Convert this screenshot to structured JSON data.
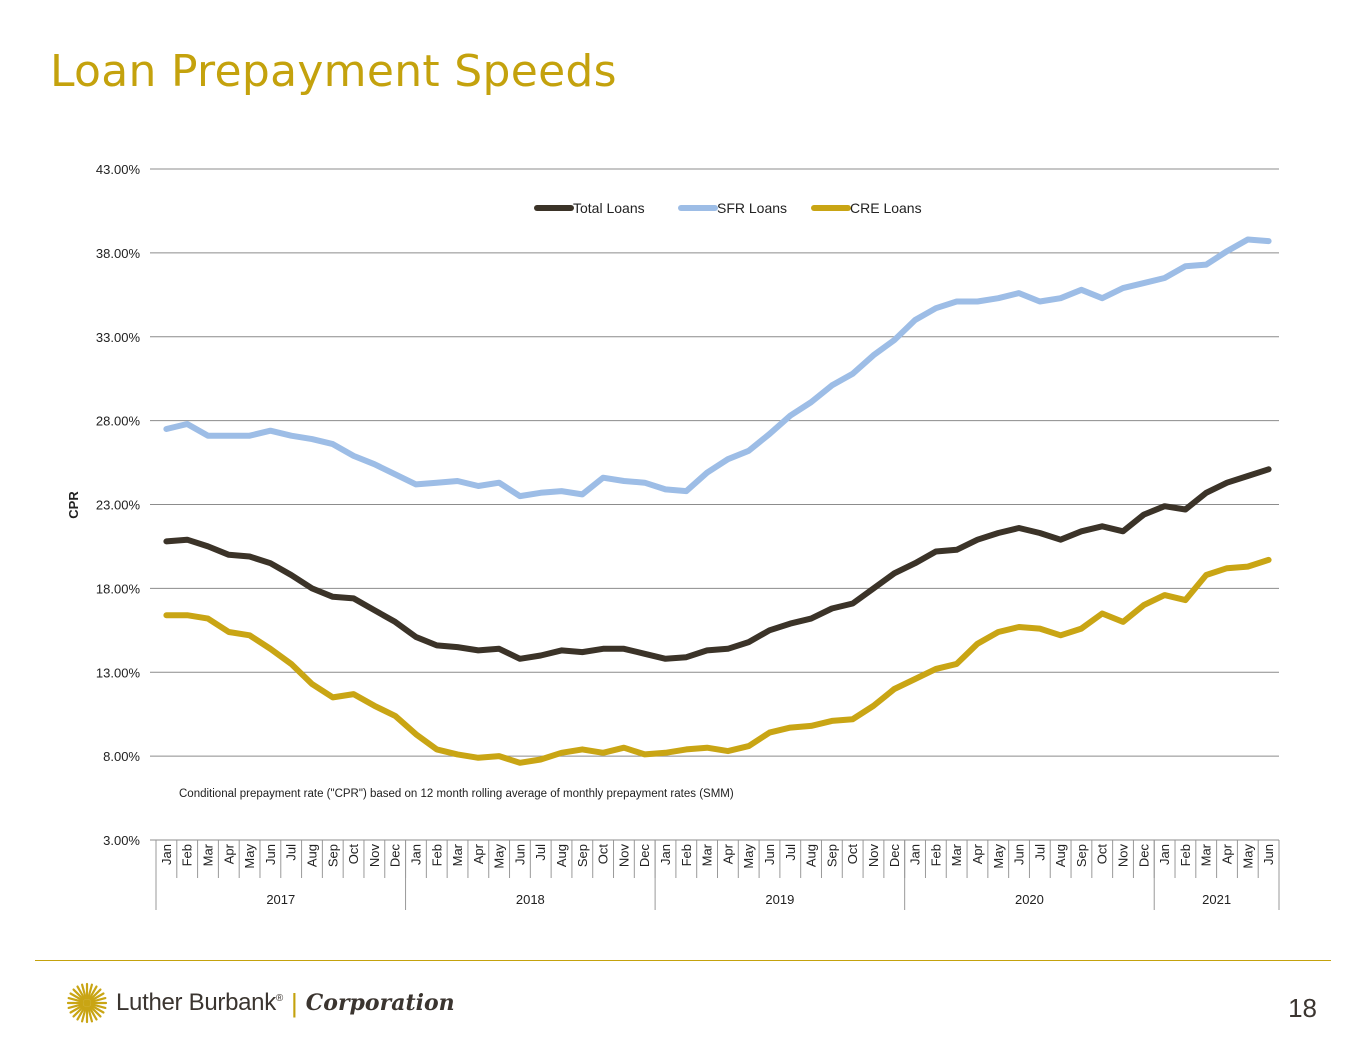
{
  "title": "Loan Prepayment Speeds",
  "page_number": "18",
  "footer": {
    "brand": "Luther Burbank",
    "registered": "®",
    "separator": "|",
    "corporation": "Corporation"
  },
  "colors": {
    "title": "#c4a20d",
    "total": "#3b3328",
    "sfr": "#9dbde6",
    "cre": "#c9a514",
    "grid": "#8c8c8c"
  },
  "chart_data": {
    "type": "line",
    "ylabel": "CPR",
    "ylim": [
      3,
      43
    ],
    "yticks": [
      "43.00%",
      "38.00%",
      "33.00%",
      "28.00%",
      "23.00%",
      "18.00%",
      "13.00%",
      "8.00%",
      "3.00%"
    ],
    "ytick_values": [
      43,
      38,
      33,
      28,
      23,
      18,
      13,
      8,
      3
    ],
    "annotation": "Conditional prepayment rate (\"CPR\") based on 12 month rolling average of monthly prepayment rates (SMM)",
    "years": [
      {
        "label": "2017",
        "months": 12
      },
      {
        "label": "2018",
        "months": 12
      },
      {
        "label": "2019",
        "months": 12
      },
      {
        "label": "2020",
        "months": 12
      },
      {
        "label": "2021",
        "months": 6
      }
    ],
    "categories": [
      "Jan",
      "Feb",
      "Mar",
      "Apr",
      "May",
      "Jun",
      "Jul",
      "Aug",
      "Sep",
      "Oct",
      "Nov",
      "Dec",
      "Jan",
      "Feb",
      "Mar",
      "Apr",
      "May",
      "Jun",
      "Jul",
      "Aug",
      "Sep",
      "Oct",
      "Nov",
      "Dec",
      "Jan",
      "Feb",
      "Mar",
      "Apr",
      "May",
      "Jun",
      "Jul",
      "Aug",
      "Sep",
      "Oct",
      "Nov",
      "Dec",
      "Jan",
      "Feb",
      "Mar",
      "Apr",
      "May",
      "Jun",
      "Jul",
      "Aug",
      "Sep",
      "Oct",
      "Nov",
      "Dec",
      "Jan",
      "Feb",
      "Mar",
      "Apr",
      "May",
      "Jun"
    ],
    "series": [
      {
        "name": "Total Loans",
        "color": "#3b3328",
        "values": [
          20.8,
          20.9,
          20.5,
          20.0,
          19.9,
          19.5,
          18.8,
          18.0,
          17.5,
          17.4,
          16.7,
          16.0,
          15.1,
          14.6,
          14.5,
          14.3,
          14.4,
          13.8,
          14.0,
          14.3,
          14.2,
          14.4,
          14.4,
          14.1,
          13.8,
          13.9,
          14.3,
          14.4,
          14.8,
          15.5,
          15.9,
          16.2,
          16.8,
          17.1,
          18.0,
          18.9,
          19.5,
          20.2,
          20.3,
          20.9,
          21.3,
          21.6,
          21.3,
          20.9,
          21.4,
          21.7,
          21.4,
          22.4,
          22.9,
          22.7,
          23.7,
          24.3,
          24.7,
          25.1
        ]
      },
      {
        "name": "SFR Loans",
        "color": "#9dbde6",
        "values": [
          27.5,
          27.8,
          27.1,
          27.1,
          27.1,
          27.4,
          27.1,
          26.9,
          26.6,
          25.9,
          25.4,
          24.8,
          24.2,
          24.3,
          24.4,
          24.1,
          24.3,
          23.5,
          23.7,
          23.8,
          23.6,
          24.6,
          24.4,
          24.3,
          23.9,
          23.8,
          24.9,
          25.7,
          26.2,
          27.2,
          28.3,
          29.1,
          30.1,
          30.8,
          31.9,
          32.8,
          34.0,
          34.7,
          35.1,
          35.1,
          35.3,
          35.6,
          35.1,
          35.3,
          35.8,
          35.3,
          35.9,
          36.2,
          36.5,
          37.2,
          37.3,
          38.1,
          38.8,
          38.7
        ]
      },
      {
        "name": "CRE Loans",
        "color": "#c9a514",
        "values": [
          16.4,
          16.4,
          16.2,
          15.4,
          15.2,
          14.4,
          13.5,
          12.3,
          11.5,
          11.7,
          11.0,
          10.4,
          9.3,
          8.4,
          8.1,
          7.9,
          8.0,
          7.6,
          7.8,
          8.2,
          8.4,
          8.2,
          8.5,
          8.1,
          8.2,
          8.4,
          8.5,
          8.3,
          8.6,
          9.4,
          9.7,
          9.8,
          10.1,
          10.2,
          11.0,
          12.0,
          12.6,
          13.2,
          13.5,
          14.7,
          15.4,
          15.7,
          15.6,
          15.2,
          15.6,
          16.5,
          16.0,
          17.0,
          17.6,
          17.3,
          18.8,
          19.2,
          19.3,
          19.7
        ]
      }
    ]
  }
}
